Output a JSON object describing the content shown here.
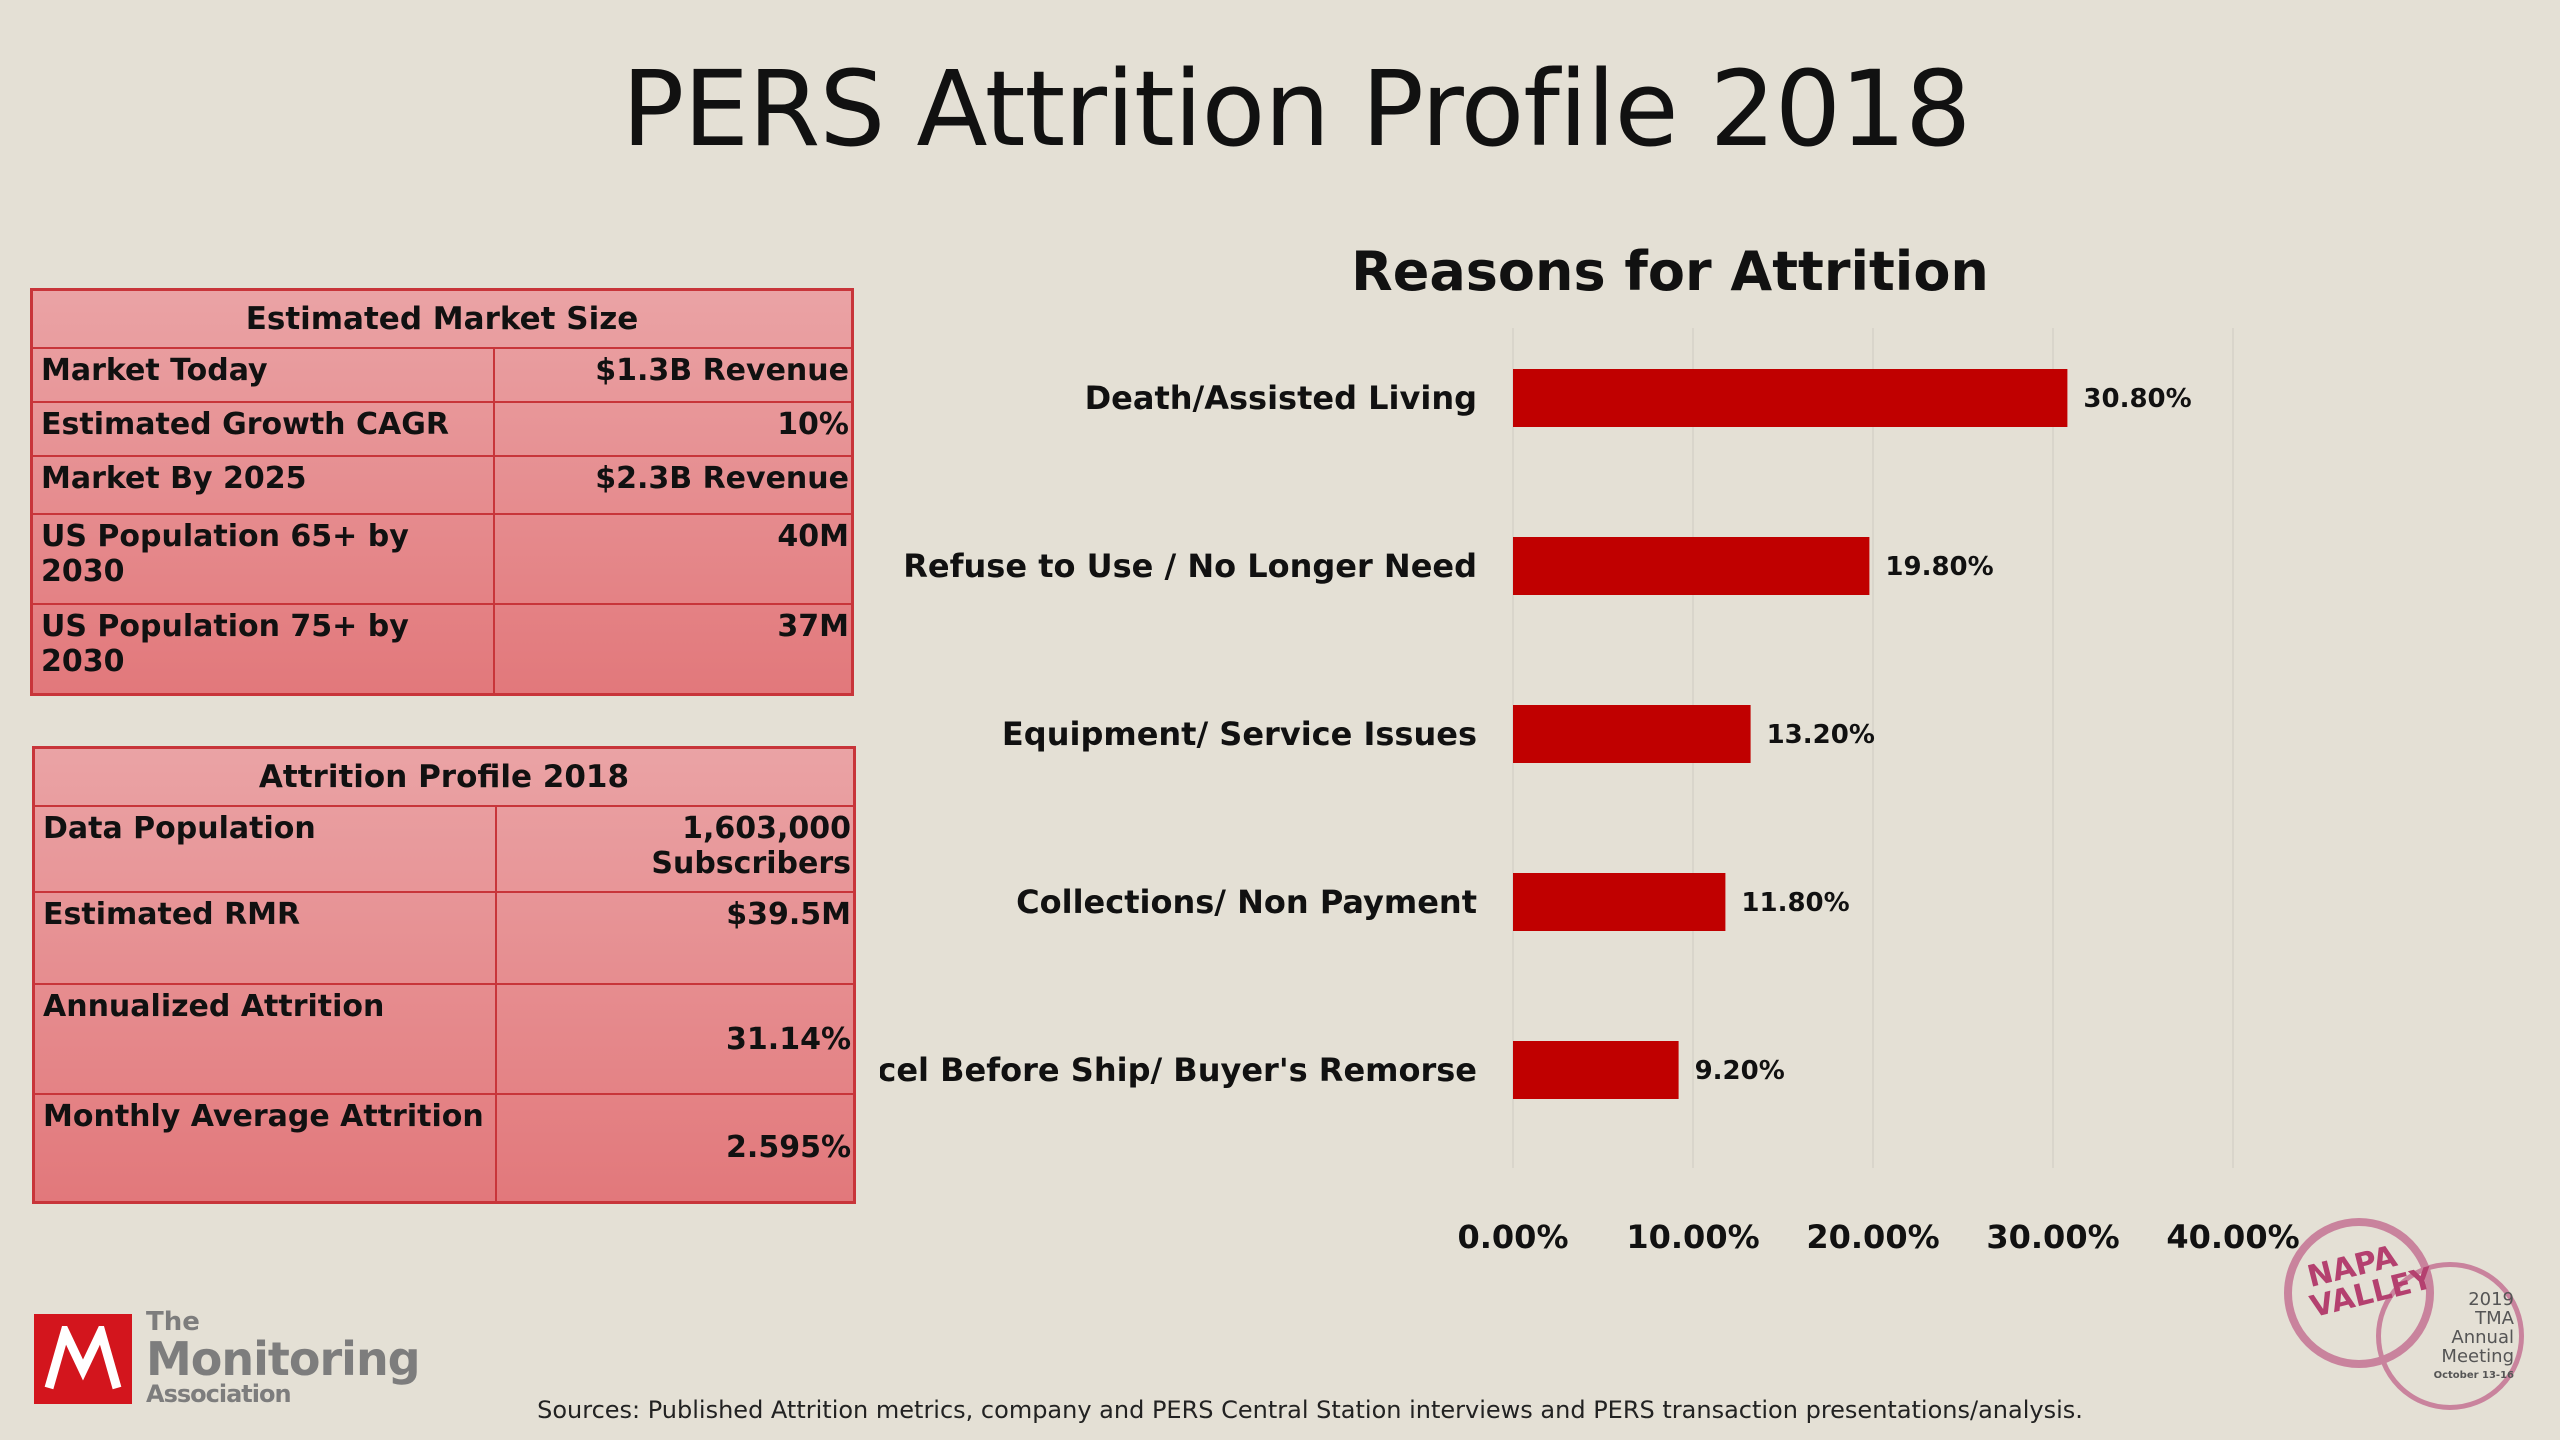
{
  "slide": {
    "title": "PERS Attrition Profile 2018",
    "sources": "Sources: Published Attrition metrics, company and PERS Central Station interviews and PERS transaction presentations/analysis."
  },
  "market_table": {
    "header": "Estimated Market Size",
    "rows": [
      {
        "label": "Market Today",
        "value": "$1.3B Revenue"
      },
      {
        "label": "Estimated Growth CAGR",
        "value": "10%"
      },
      {
        "label": "Market By 2025",
        "value": "$2.3B Revenue"
      },
      {
        "label": "US Population 65+ by 2030",
        "value": "40M"
      },
      {
        "label": "US Population 75+ by  2030",
        "value": "37M"
      }
    ]
  },
  "attrition_table": {
    "header": "Attrition Profile 2018",
    "rows": [
      {
        "label": "Data Population",
        "value": "1,603,000 Subscribers"
      },
      {
        "label": "Estimated RMR",
        "value": "$39.5M"
      },
      {
        "label": "Annualized Attrition",
        "value": "31.14%"
      },
      {
        "label": "Monthly Average Attrition",
        "value": "2.595%"
      }
    ]
  },
  "chart_data": {
    "type": "bar",
    "orientation": "horizontal",
    "title": "Reasons for Attrition",
    "categories": [
      "Death/Assisted Living",
      "Refuse to Use / No Longer Need",
      "Equipment/ Service Issues",
      "Collections/ Non Payment",
      "Cancel Before Ship/ Buyer's Remorse"
    ],
    "values": [
      30.8,
      19.8,
      13.2,
      11.8,
      9.2
    ],
    "data_labels": [
      "30.80%",
      "19.80%",
      "13.20%",
      "11.80%",
      "9.20%"
    ],
    "xlim": [
      0,
      40
    ],
    "xticks": [
      0,
      10,
      20,
      30,
      40
    ],
    "xtick_labels": [
      "0.00%",
      "10.00%",
      "20.00%",
      "30.00%",
      "40.00%"
    ],
    "grid": true,
    "bar_color": "#c00000"
  },
  "logo": {
    "the": "The",
    "name": "Monitoring",
    "assoc": "Association",
    "mark": "M",
    "color": "#d3151d"
  },
  "badge": {
    "napa": "NAPA VALLEY",
    "year": "2019",
    "org": "TMA",
    "line1": "Annual",
    "line2": "Meeting",
    "date": "October 13-16"
  }
}
